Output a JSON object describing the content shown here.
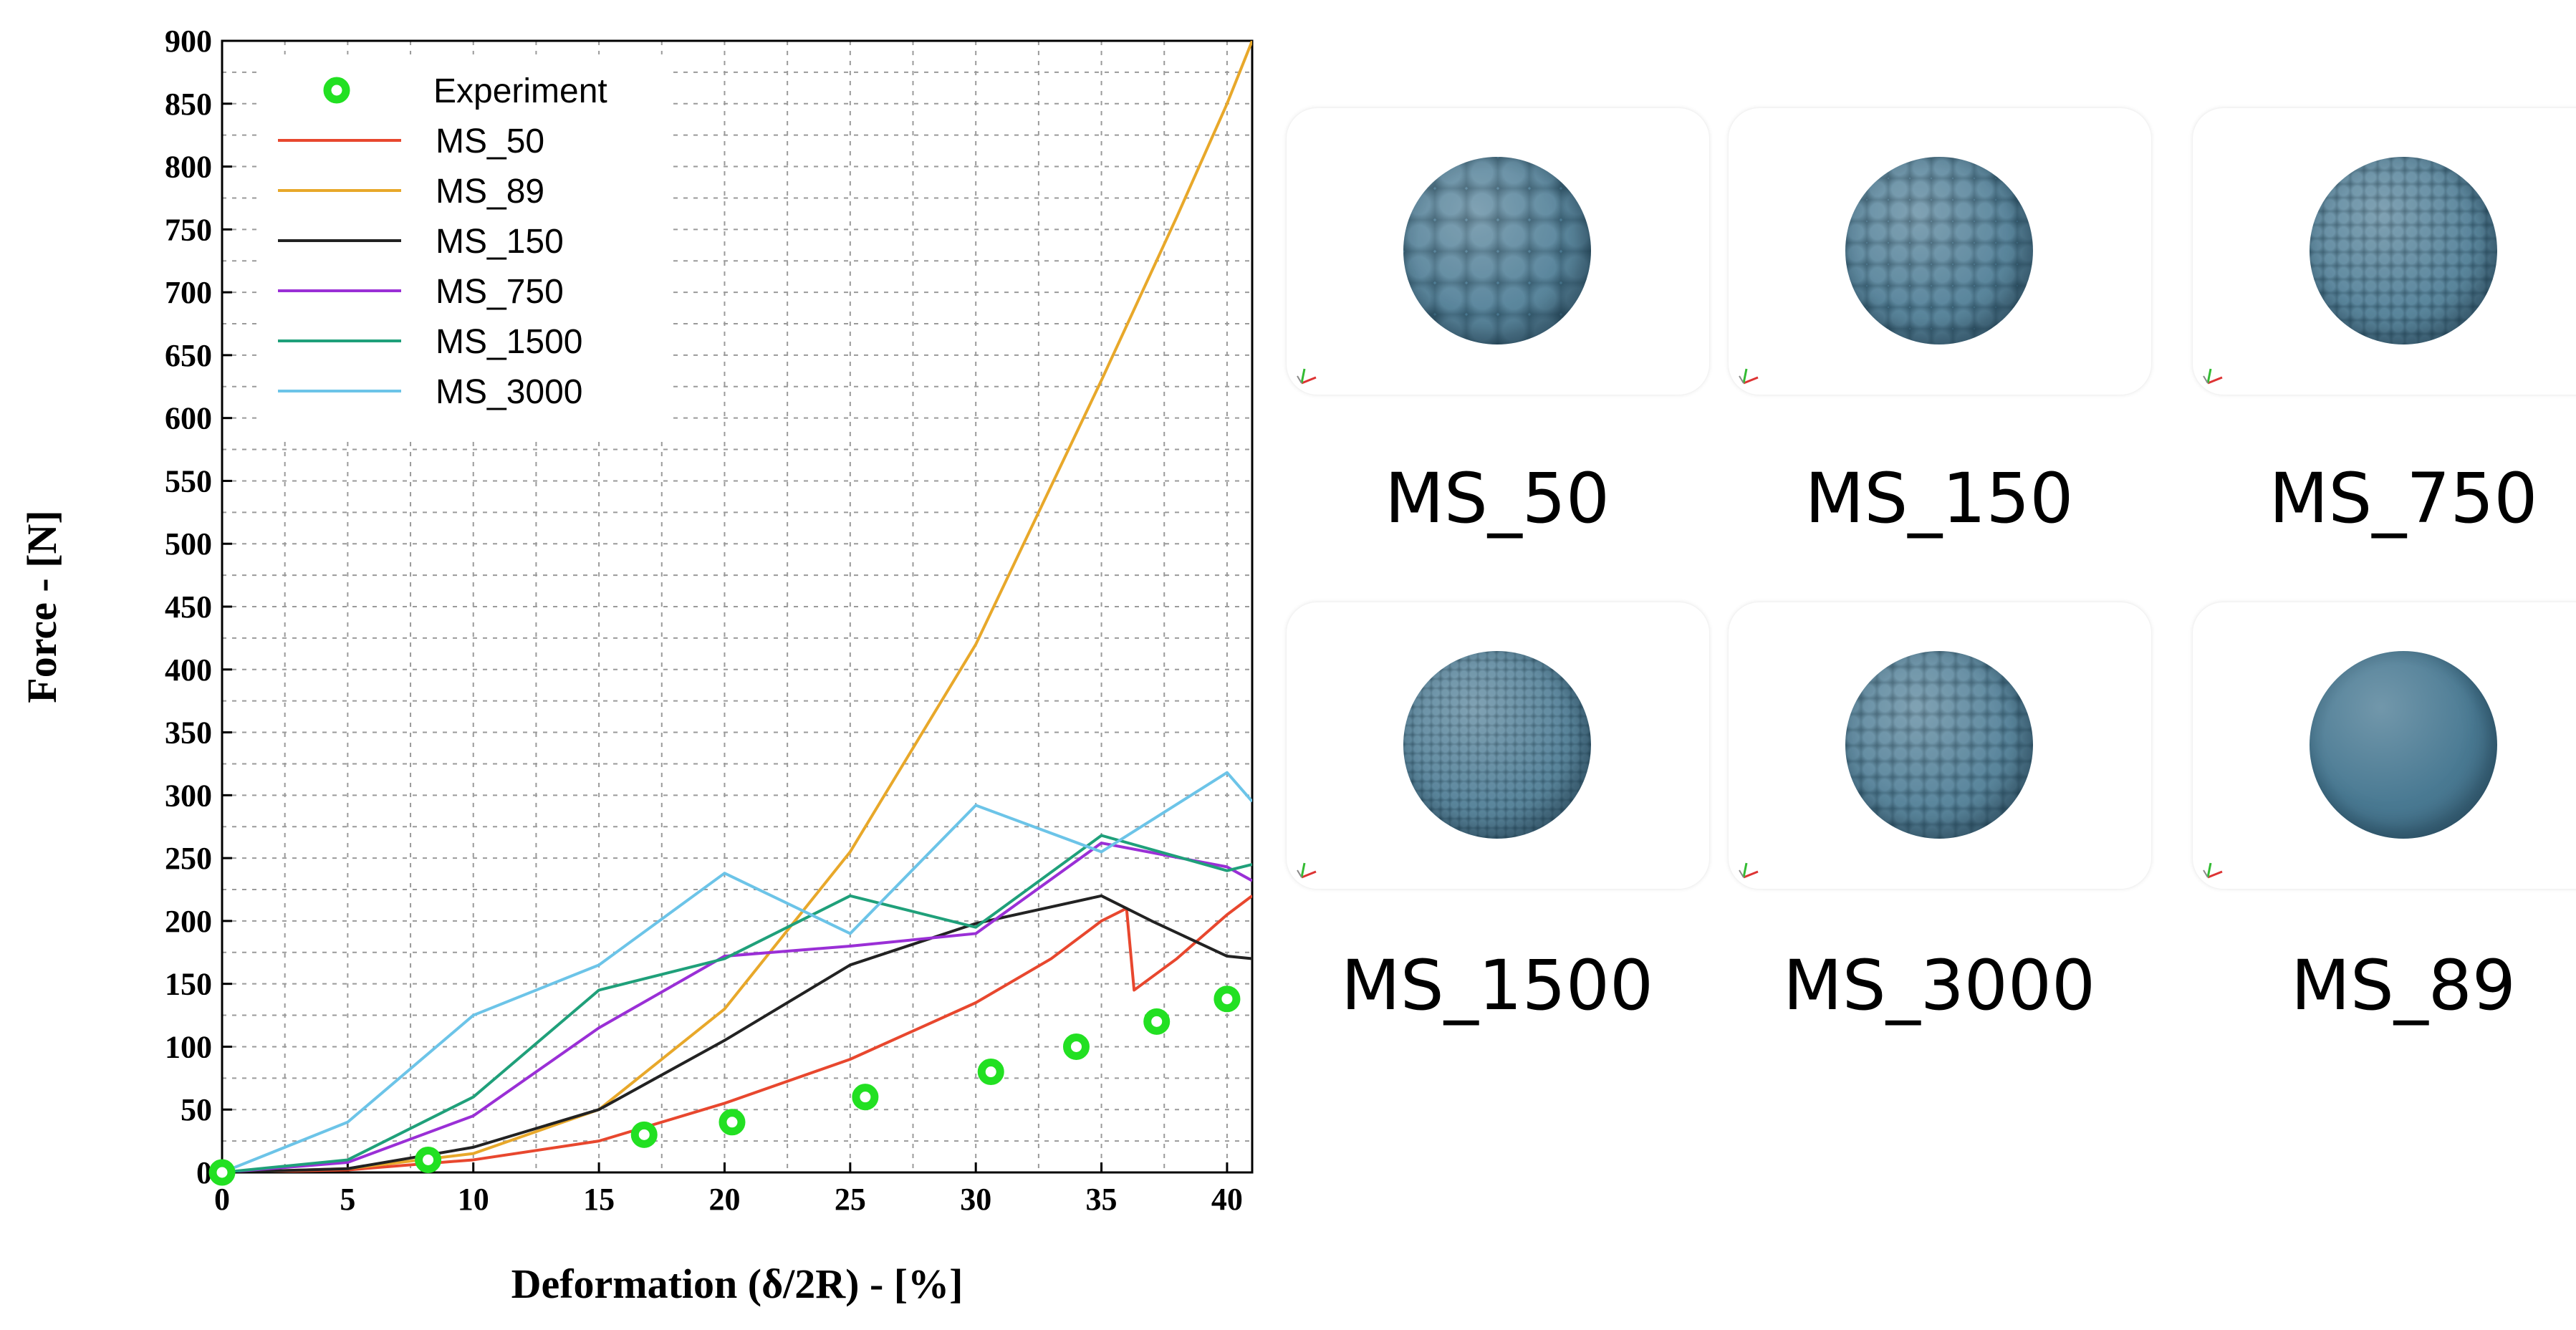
{
  "chart_data": {
    "type": "line",
    "title": "",
    "xlabel": "Deformation (δ/2R) - [%]",
    "ylabel": "Force - [N]",
    "xlim": [
      0,
      41
    ],
    "ylim": [
      0,
      900
    ],
    "x_ticks": [
      0,
      5,
      10,
      15,
      20,
      25,
      30,
      35,
      40
    ],
    "y_ticks": [
      0,
      50,
      100,
      150,
      200,
      250,
      300,
      350,
      400,
      450,
      500,
      550,
      600,
      650,
      700,
      750,
      800,
      850,
      900
    ],
    "grid": true,
    "legend_position": "top-left",
    "series": [
      {
        "name": "Experiment",
        "kind": "scatter",
        "color": "#22e022",
        "x": [
          0,
          8.2,
          16.8,
          20.3,
          25.6,
          30.6,
          34.0,
          37.2,
          40.0
        ],
        "y": [
          0,
          10,
          30,
          40,
          60,
          80,
          100,
          120,
          138
        ]
      },
      {
        "name": "MS_50",
        "kind": "line",
        "color": "#e8472e",
        "x": [
          0,
          5,
          10,
          15,
          20,
          25,
          30,
          33,
          35,
          36,
          36.3,
          38,
          40,
          41
        ],
        "y": [
          0,
          2,
          10,
          25,
          55,
          90,
          135,
          170,
          200,
          210,
          145,
          170,
          205,
          220
        ]
      },
      {
        "name": "MS_89",
        "kind": "line",
        "color": "#e8a82a",
        "x": [
          0,
          5,
          10,
          15,
          20,
          25,
          30,
          35,
          38,
          40,
          41
        ],
        "y": [
          0,
          3,
          15,
          50,
          130,
          255,
          420,
          630,
          760,
          850,
          900
        ]
      },
      {
        "name": "MS_150",
        "kind": "line",
        "color": "#222222",
        "x": [
          0,
          5,
          10,
          15,
          20,
          25,
          30,
          35,
          37,
          40,
          41
        ],
        "y": [
          0,
          3,
          20,
          50,
          105,
          165,
          198,
          220,
          200,
          172,
          170
        ]
      },
      {
        "name": "MS_750",
        "kind": "line",
        "color": "#9a2fd6",
        "x": [
          0,
          5,
          10,
          15,
          20,
          25,
          30,
          35,
          40,
          41
        ],
        "y": [
          0,
          8,
          45,
          115,
          172,
          180,
          190,
          262,
          243,
          232
        ]
      },
      {
        "name": "MS_1500",
        "kind": "line",
        "color": "#1fa07a",
        "x": [
          0,
          5,
          10,
          15,
          20,
          25,
          30,
          35,
          40,
          41
        ],
        "y": [
          0,
          10,
          60,
          145,
          170,
          220,
          195,
          268,
          240,
          245
        ]
      },
      {
        "name": "MS_3000",
        "kind": "line",
        "color": "#6cc4e8",
        "x": [
          0,
          5,
          10,
          15,
          20,
          25,
          30,
          35,
          40,
          41
        ],
        "y": [
          0,
          40,
          125,
          165,
          238,
          190,
          292,
          255,
          318,
          295
        ]
      }
    ]
  },
  "models": [
    {
      "label": "MS_50",
      "sphere_color": "#4a7a93",
      "bump_scale": "coarse"
    },
    {
      "label": "MS_150",
      "sphere_color": "#4a7a93",
      "bump_scale": "medium"
    },
    {
      "label": "MS_750",
      "sphere_color": "#4a7a93",
      "bump_scale": "fine"
    },
    {
      "label": "MS_1500",
      "sphere_color": "#4a7a93",
      "bump_scale": "very-fine"
    },
    {
      "label": "MS_3000",
      "sphere_color": "#4a7a93",
      "bump_scale": "fine-medium"
    },
    {
      "label": "MS_89",
      "sphere_color": "#4a7a93",
      "bump_scale": "smooth"
    }
  ]
}
